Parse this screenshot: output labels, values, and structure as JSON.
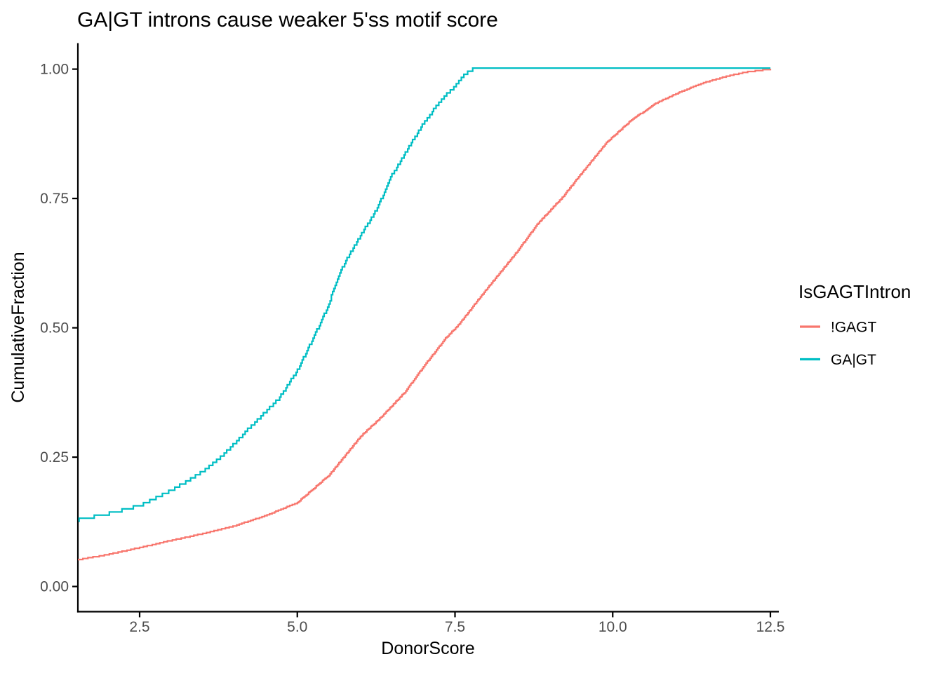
{
  "chart_data": {
    "type": "line",
    "subtype": "ecdf",
    "title": "GA|GT introns cause weaker 5'ss motif score",
    "xlabel": "DonorScore",
    "ylabel": "CumulativeFraction",
    "xlim": [
      1.5,
      12.5
    ],
    "ylim": [
      0.0,
      1.0
    ],
    "grid": false,
    "background": "#ffffff",
    "axis_line_color": "#000000",
    "tick_label_color": "#4d4d4d",
    "x_ticks": [
      2.5,
      5.0,
      7.5,
      10.0,
      12.5
    ],
    "x_tick_labels": [
      "2.5",
      "5.0",
      "7.5",
      "10.0",
      "12.5"
    ],
    "y_ticks": [
      0.0,
      0.25,
      0.5,
      0.75,
      1.0
    ],
    "y_tick_labels": [
      "0.00",
      "0.25",
      "0.50",
      "0.75",
      "1.00"
    ],
    "legend": {
      "title": "IsGAGTIntron",
      "position": "right",
      "entries": [
        {
          "label": "!GAGT",
          "color": "#F8766D"
        },
        {
          "label": "GA|GT",
          "color": "#00BEC4"
        }
      ]
    },
    "series": [
      {
        "name": "!GAGT",
        "color": "#F8766D",
        "step_quantum": 0.0018,
        "points": [
          [
            1.5,
            0.051
          ],
          [
            2.0,
            0.062
          ],
          [
            2.5,
            0.075
          ],
          [
            3.0,
            0.089
          ],
          [
            3.5,
            0.102
          ],
          [
            4.0,
            0.117
          ],
          [
            4.5,
            0.137
          ],
          [
            5.0,
            0.162
          ],
          [
            5.5,
            0.215
          ],
          [
            6.0,
            0.29
          ],
          [
            6.35,
            0.33
          ],
          [
            6.7,
            0.375
          ],
          [
            7.0,
            0.425
          ],
          [
            7.35,
            0.48
          ],
          [
            7.55,
            0.505
          ],
          [
            8.0,
            0.575
          ],
          [
            8.5,
            0.65
          ],
          [
            8.8,
            0.7
          ],
          [
            9.2,
            0.752
          ],
          [
            9.5,
            0.798
          ],
          [
            9.9,
            0.858
          ],
          [
            10.3,
            0.902
          ],
          [
            10.7,
            0.935
          ],
          [
            11.0,
            0.952
          ],
          [
            11.4,
            0.972
          ],
          [
            11.8,
            0.986
          ],
          [
            12.1,
            0.994
          ],
          [
            12.5,
            1.0
          ]
        ]
      },
      {
        "name": "GA|GT",
        "color": "#00BEC4",
        "step_quantum": 0.006,
        "points": [
          [
            1.5,
            0.128
          ],
          [
            2.0,
            0.141
          ],
          [
            2.5,
            0.156
          ],
          [
            3.0,
            0.186
          ],
          [
            3.25,
            0.203
          ],
          [
            3.5,
            0.222
          ],
          [
            3.8,
            0.252
          ],
          [
            4.0,
            0.276
          ],
          [
            4.25,
            0.308
          ],
          [
            4.5,
            0.338
          ],
          [
            4.7,
            0.362
          ],
          [
            5.0,
            0.418
          ],
          [
            5.25,
            0.48
          ],
          [
            5.35,
            0.505
          ],
          [
            5.5,
            0.545
          ],
          [
            5.6,
            0.585
          ],
          [
            5.75,
            0.625
          ],
          [
            6.0,
            0.678
          ],
          [
            6.25,
            0.727
          ],
          [
            6.4,
            0.768
          ],
          [
            6.5,
            0.795
          ],
          [
            6.75,
            0.846
          ],
          [
            7.0,
            0.895
          ],
          [
            7.2,
            0.928
          ],
          [
            7.35,
            0.95
          ],
          [
            7.5,
            0.966
          ],
          [
            7.6,
            0.984
          ],
          [
            7.7,
            0.993
          ],
          [
            7.78,
            1.0
          ],
          [
            12.5,
            1.0
          ]
        ]
      }
    ]
  }
}
